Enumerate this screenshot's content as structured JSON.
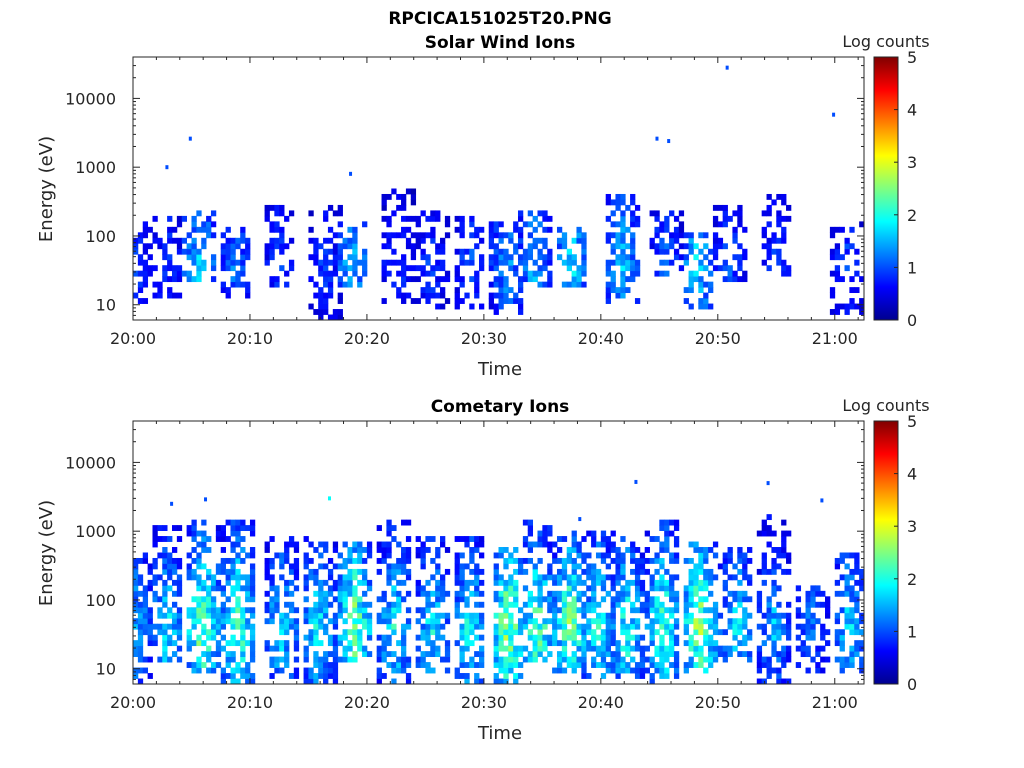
{
  "figure_title": "RPCICA151025T20.PNG",
  "chart_data": [
    {
      "type": "heatmap",
      "title": "Solar Wind Ions",
      "xlabel": "Time",
      "ylabel": "Energy (eV)",
      "x_ticks": [
        "20:00",
        "20:10",
        "20:20",
        "20:30",
        "20:40",
        "20:50",
        "21:00"
      ],
      "x_range_minutes": [
        0,
        62.5
      ],
      "y_scale": "log",
      "y_ticks": [
        {
          "value": 10,
          "label": "10"
        },
        {
          "value": 100,
          "label": "100"
        },
        {
          "value": 1000,
          "label": "1000"
        },
        {
          "value": 10000,
          "label": "10000"
        }
      ],
      "ylim": [
        6,
        40000
      ],
      "colorbar": {
        "label": "Log counts",
        "range": [
          0,
          5
        ],
        "ticks": [
          "0",
          "1",
          "2",
          "3",
          "4",
          "5"
        ],
        "colormap": "jet"
      },
      "grid": false,
      "bursts": [
        {
          "t": 0.3,
          "lo": 12,
          "hi": 150,
          "amp": 1.0
        },
        {
          "t": 2.9,
          "lo": 15,
          "hi": 180,
          "amp": 1.0
        },
        {
          "t": 5.7,
          "lo": 25,
          "hi": 220,
          "amp": 1.8
        },
        {
          "t": 8.7,
          "lo": 15,
          "hi": 120,
          "amp": 1.3
        },
        {
          "t": 12.5,
          "lo": 20,
          "hi": 250,
          "amp": 1.0
        },
        {
          "t": 16.5,
          "lo": 7,
          "hi": 230,
          "amp": 1.0
        },
        {
          "t": 18.8,
          "lo": 20,
          "hi": 140,
          "amp": 1.7
        },
        {
          "t": 22.6,
          "lo": 12,
          "hi": 450,
          "amp": 1.0
        },
        {
          "t": 25.5,
          "lo": 10,
          "hi": 200,
          "amp": 1.0
        },
        {
          "t": 28.8,
          "lo": 10,
          "hi": 180,
          "amp": 1.1
        },
        {
          "t": 32.0,
          "lo": 8,
          "hi": 150,
          "amp": 1.5
        },
        {
          "t": 34.3,
          "lo": 20,
          "hi": 200,
          "amp": 1.6
        },
        {
          "t": 37.5,
          "lo": 20,
          "hi": 120,
          "amp": 1.9
        },
        {
          "t": 41.8,
          "lo": 12,
          "hi": 350,
          "amp": 1.7
        },
        {
          "t": 45.5,
          "lo": 30,
          "hi": 220,
          "amp": 1.2
        },
        {
          "t": 48.3,
          "lo": 10,
          "hi": 110,
          "amp": 1.8
        },
        {
          "t": 51.0,
          "lo": 25,
          "hi": 250,
          "amp": 1.1
        },
        {
          "t": 55.0,
          "lo": 30,
          "hi": 350,
          "amp": 1.0
        },
        {
          "t": 61.0,
          "lo": 8,
          "hi": 150,
          "amp": 1.0
        }
      ],
      "points": [
        {
          "t": 4.9,
          "e": 2600,
          "v": 1.0
        },
        {
          "t": 2.9,
          "e": 1000,
          "v": 1.0
        },
        {
          "t": 18.6,
          "e": 800,
          "v": 1.0
        },
        {
          "t": 44.8,
          "e": 2600,
          "v": 1.0
        },
        {
          "t": 45.8,
          "e": 2400,
          "v": 1.0
        },
        {
          "t": 50.8,
          "e": 28000,
          "v": 1.0
        },
        {
          "t": 59.9,
          "e": 5800,
          "v": 1.0
        }
      ]
    },
    {
      "type": "heatmap",
      "title": "Cometary Ions",
      "xlabel": "Time",
      "ylabel": "Energy (eV)",
      "x_ticks": [
        "20:00",
        "20:10",
        "20:20",
        "20:30",
        "20:40",
        "20:50",
        "21:00"
      ],
      "x_range_minutes": [
        0,
        62.5
      ],
      "y_scale": "log",
      "y_ticks": [
        {
          "value": 10,
          "label": "10"
        },
        {
          "value": 100,
          "label": "100"
        },
        {
          "value": 1000,
          "label": "1000"
        },
        {
          "value": 10000,
          "label": "10000"
        }
      ],
      "ylim": [
        6,
        40000
      ],
      "colorbar": {
        "label": "Log counts",
        "range": [
          0,
          5
        ],
        "ticks": [
          "0",
          "1",
          "2",
          "3",
          "4",
          "5"
        ],
        "colormap": "jet"
      },
      "grid": false,
      "bursts": [
        {
          "t": 0.3,
          "lo": 6,
          "hi": 400,
          "amp": 1.6
        },
        {
          "t": 2.9,
          "lo": 15,
          "hi": 1000,
          "amp": 1.9
        },
        {
          "t": 5.9,
          "lo": 10,
          "hi": 1200,
          "amp": 2.6
        },
        {
          "t": 9.0,
          "lo": 6,
          "hi": 1400,
          "amp": 2.4
        },
        {
          "t": 12.7,
          "lo": 8,
          "hi": 800,
          "amp": 1.9
        },
        {
          "t": 15.9,
          "lo": 6,
          "hi": 700,
          "amp": 2.0
        },
        {
          "t": 18.9,
          "lo": 15,
          "hi": 600,
          "amp": 2.7
        },
        {
          "t": 22.4,
          "lo": 6,
          "hi": 1200,
          "amp": 2.0
        },
        {
          "t": 25.6,
          "lo": 10,
          "hi": 800,
          "amp": 1.9
        },
        {
          "t": 28.8,
          "lo": 6,
          "hi": 700,
          "amp": 2.0
        },
        {
          "t": 32.1,
          "lo": 6,
          "hi": 500,
          "amp": 2.8
        },
        {
          "t": 34.6,
          "lo": 15,
          "hi": 1400,
          "amp": 2.5
        },
        {
          "t": 37.4,
          "lo": 10,
          "hi": 900,
          "amp": 2.6
        },
        {
          "t": 39.8,
          "lo": 8,
          "hi": 900,
          "amp": 2.1
        },
        {
          "t": 42.2,
          "lo": 8,
          "hi": 700,
          "amp": 2.2
        },
        {
          "t": 45.3,
          "lo": 6,
          "hi": 1300,
          "amp": 2.4
        },
        {
          "t": 48.4,
          "lo": 10,
          "hi": 600,
          "amp": 2.8
        },
        {
          "t": 51.6,
          "lo": 15,
          "hi": 500,
          "amp": 1.9
        },
        {
          "t": 54.8,
          "lo": 6,
          "hi": 1500,
          "amp": 1.6
        },
        {
          "t": 58.0,
          "lo": 10,
          "hi": 150,
          "amp": 1.3
        },
        {
          "t": 61.2,
          "lo": 10,
          "hi": 400,
          "amp": 1.8
        }
      ],
      "points": [
        {
          "t": 3.3,
          "e": 2500,
          "v": 1.0
        },
        {
          "t": 6.2,
          "e": 2900,
          "v": 1.0
        },
        {
          "t": 16.8,
          "e": 3000,
          "v": 1.9
        },
        {
          "t": 43.0,
          "e": 5200,
          "v": 1.0
        },
        {
          "t": 38.2,
          "e": 1500,
          "v": 1.0
        },
        {
          "t": 54.3,
          "e": 5000,
          "v": 1.0
        },
        {
          "t": 58.9,
          "e": 2800,
          "v": 1.0
        }
      ]
    }
  ]
}
